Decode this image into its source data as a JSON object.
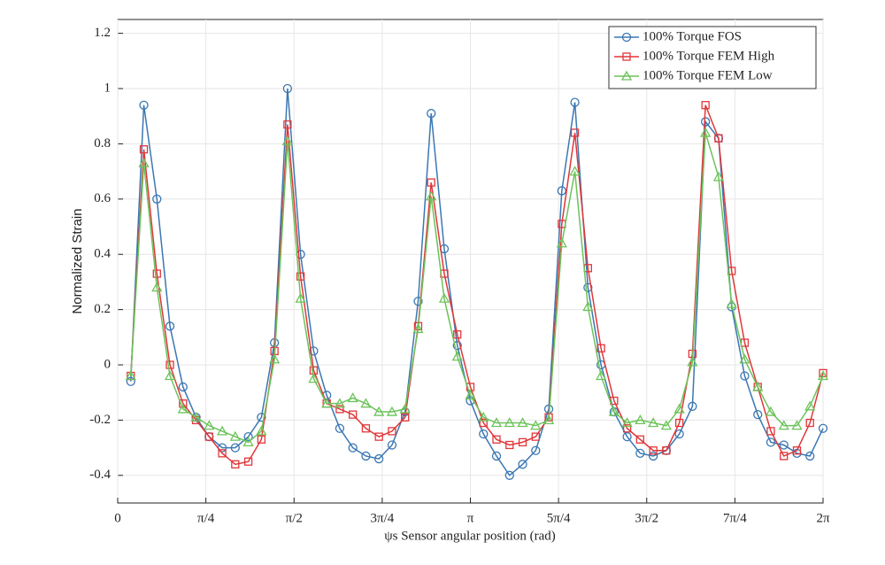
{
  "chart_data": {
    "type": "line",
    "xlabel": "ψs Sensor angular position (rad)",
    "ylabel": "Normalized Strain",
    "x": [
      0.1164,
      0.2327,
      0.3491,
      0.4654,
      0.5818,
      0.6981,
      0.8145,
      0.9308,
      1.0472,
      1.1636,
      1.2799,
      1.3963,
      1.5126,
      1.629,
      1.7453,
      1.8617,
      1.978,
      2.0944,
      2.2108,
      2.3271,
      2.4435,
      2.5598,
      2.6762,
      2.7925,
      2.9089,
      3.0252,
      3.1416,
      3.258,
      3.3743,
      3.4907,
      3.607,
      3.7234,
      3.8397,
      3.9561,
      4.0724,
      4.1888,
      4.3052,
      4.4215,
      4.5379,
      4.6542,
      4.7706,
      4.8869,
      5.0033,
      5.1196,
      5.236,
      5.3524,
      5.4687,
      5.5851,
      5.7014,
      5.8178,
      5.9341,
      6.0505,
      6.1668,
      6.2832
    ],
    "series": [
      {
        "name": "100% Torque FOS",
        "color": "#3b77b3",
        "marker": "circle",
        "values": [
          -0.06,
          0.94,
          0.6,
          0.14,
          -0.08,
          -0.19,
          -0.26,
          -0.3,
          -0.3,
          -0.26,
          -0.19,
          0.08,
          1.0,
          0.4,
          0.05,
          -0.11,
          -0.23,
          -0.3,
          -0.33,
          -0.34,
          -0.29,
          -0.17,
          0.23,
          0.91,
          0.42,
          0.07,
          -0.13,
          -0.25,
          -0.33,
          -0.4,
          -0.36,
          -0.31,
          -0.16,
          0.63,
          0.95,
          0.28,
          0.0,
          -0.17,
          -0.26,
          -0.32,
          -0.33,
          -0.31,
          -0.25,
          -0.15,
          0.88,
          0.82,
          0.21,
          -0.04,
          -0.18,
          -0.28,
          -0.29,
          -0.32,
          -0.33,
          -0.23
        ]
      },
      {
        "name": "100% Torque FEM High",
        "color": "#e0373a",
        "marker": "square",
        "values": [
          -0.04,
          0.78,
          0.33,
          0.0,
          -0.14,
          -0.2,
          -0.26,
          -0.32,
          -0.36,
          -0.35,
          -0.27,
          0.05,
          0.87,
          0.32,
          -0.02,
          -0.14,
          -0.16,
          -0.18,
          -0.23,
          -0.26,
          -0.24,
          -0.19,
          0.14,
          0.66,
          0.33,
          0.11,
          -0.08,
          -0.21,
          -0.27,
          -0.29,
          -0.28,
          -0.26,
          -0.19,
          0.51,
          0.84,
          0.35,
          0.06,
          -0.13,
          -0.23,
          -0.27,
          -0.31,
          -0.31,
          -0.21,
          0.04,
          0.94,
          0.82,
          0.34,
          0.08,
          -0.08,
          -0.24,
          -0.33,
          -0.31,
          -0.21,
          -0.03
        ]
      },
      {
        "name": "100% Torque FEM Low",
        "color": "#6cc35a",
        "marker": "triangle",
        "values": [
          -0.04,
          0.73,
          0.28,
          -0.04,
          -0.16,
          -0.19,
          -0.22,
          -0.24,
          -0.26,
          -0.28,
          -0.24,
          0.02,
          0.81,
          0.24,
          -0.05,
          -0.14,
          -0.14,
          -0.12,
          -0.14,
          -0.17,
          -0.17,
          -0.16,
          0.13,
          0.61,
          0.24,
          0.03,
          -0.11,
          -0.19,
          -0.21,
          -0.21,
          -0.21,
          -0.22,
          -0.2,
          0.44,
          0.7,
          0.21,
          -0.04,
          -0.17,
          -0.21,
          -0.2,
          -0.21,
          -0.22,
          -0.16,
          0.01,
          0.84,
          0.68,
          0.22,
          0.02,
          -0.08,
          -0.17,
          -0.22,
          -0.22,
          -0.15,
          -0.04
        ]
      }
    ],
    "xlim": [
      0,
      6.2832
    ],
    "xticks": [
      0,
      {
        "value": 0.7854,
        "label": "π/4"
      },
      {
        "value": 1.5708,
        "label": "π/2"
      },
      {
        "value": 2.3562,
        "label": "3π/4"
      },
      {
        "value": 3.1416,
        "label": "π"
      },
      {
        "value": 3.927,
        "label": "5π/4"
      },
      {
        "value": 4.7124,
        "label": "3π/2"
      },
      {
        "value": 5.4978,
        "label": "7π/4"
      },
      {
        "value": 6.2832,
        "label": "2π"
      }
    ],
    "ylim": [
      -0.5,
      1.25
    ],
    "yticks": [
      -0.4,
      -0.2,
      0,
      0.2,
      0.4,
      0.6,
      0.8,
      1,
      1.2
    ],
    "grid": true,
    "legend": "top-right"
  }
}
